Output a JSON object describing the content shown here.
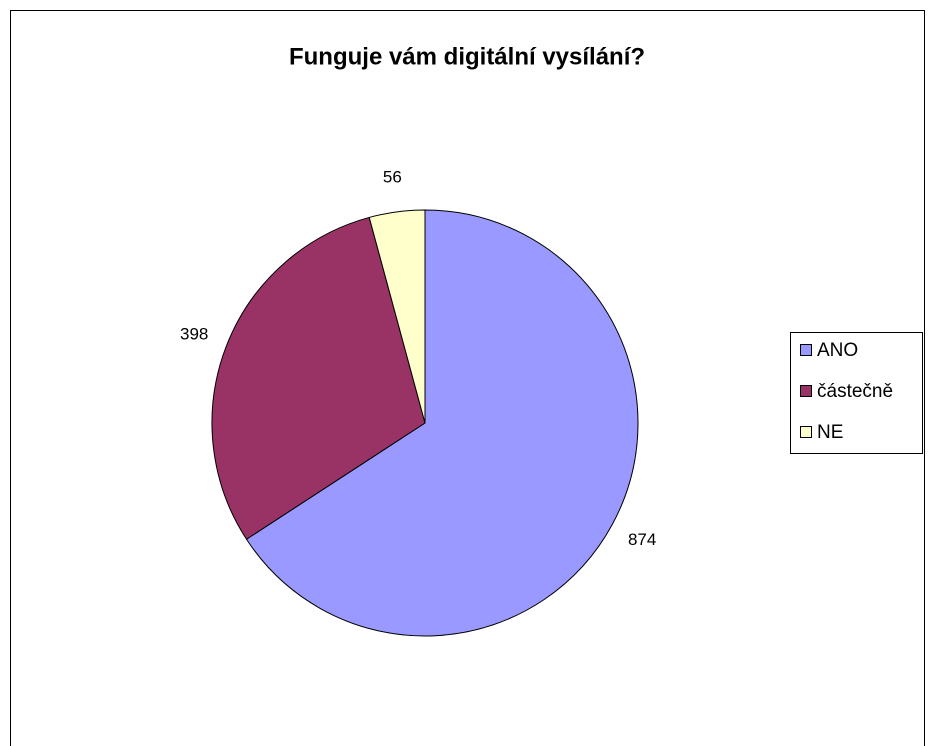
{
  "chart_data": {
    "type": "pie",
    "title": "Funguje vám digitální vysílání?",
    "categories": [
      "ANO",
      "částečně",
      "NE"
    ],
    "values": [
      874,
      398,
      56
    ],
    "colors": [
      "#9999ff",
      "#993366",
      "#ffffcc"
    ],
    "legend": "right"
  }
}
